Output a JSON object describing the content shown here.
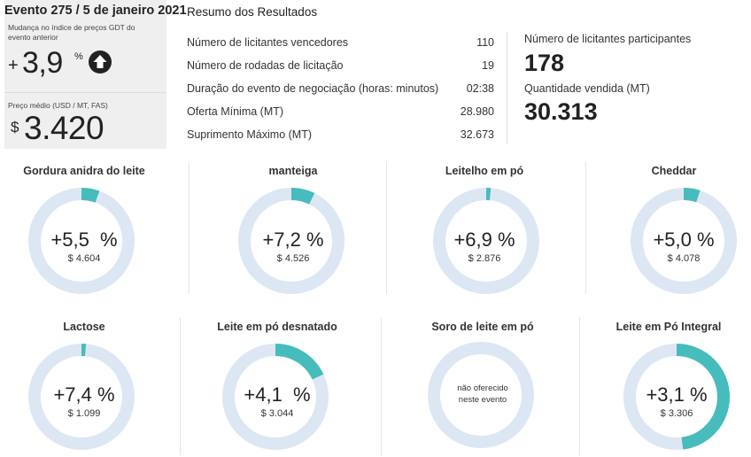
{
  "event": {
    "title": "Evento 275 / 5 de janeiro 2021",
    "gdt_change_label": "Mudança no índice de preços GDT do evento anterior",
    "gdt_change_sign": "+",
    "gdt_change_value": "3,9",
    "gdt_change_unit": "%",
    "gdt_change_icon": "up-arrow-icon",
    "avg_price_label": "Preço médio (USD / MT, FAS)",
    "avg_price_currency": "$",
    "avg_price_value": "3.420"
  },
  "results": {
    "title": "Resumo dos Resultados",
    "rows": [
      {
        "label": "Número de licitantes vencedores",
        "value": "110"
      },
      {
        "label": "Número de rodadas de licitação",
        "value": "19"
      },
      {
        "label": "Duração do evento de negociação (horas: minutos)",
        "value": "02:38"
      },
      {
        "label": "Oferta Mínima (MT)",
        "value": "28.980"
      },
      {
        "label": "Suprimento Máximo (MT)",
        "value": "32.673"
      }
    ],
    "participants_label": "Número de licitantes participantes",
    "participants_value": "178",
    "quantity_sold_label": "Quantidade vendida (MT)",
    "quantity_sold_value": "30.313"
  },
  "colors": {
    "ring_fill": "#46bcbc",
    "ring_track": "#dde7f3",
    "panel_bg": "#efefef",
    "up_icon": "#222222"
  },
  "products": [
    {
      "name": "Gordura anidra do leite",
      "change": "+5,5  %",
      "price": "$ 4.604",
      "ring_fraction": 0.055
    },
    {
      "name": "manteiga",
      "change": "+7,2 %",
      "price": "$ 4.526",
      "ring_fraction": 0.072
    },
    {
      "name": "Leitelho em pó",
      "change": "+6,9 %",
      "price": "$ 2.876",
      "ring_fraction": 0.014
    },
    {
      "name": "Cheddar",
      "change": "+5,0 %",
      "price": "$ 4.078",
      "ring_fraction": 0.05
    },
    {
      "name": "Lactose",
      "change": "+7,4 %",
      "price": "$ 1.099",
      "ring_fraction": 0.014
    },
    {
      "name": "Leite em pó desnatado",
      "change": "+4,1  %",
      "price": "$ 3.044",
      "ring_fraction": 0.18
    },
    {
      "name": "Soro de leite em pó",
      "not_offered": "não oferecido\nneste evento",
      "ring_fraction": 0
    },
    {
      "name": "Leite em Pó Integral",
      "change": "+3,1 %",
      "price": "$ 3.306",
      "ring_fraction": 0.48
    }
  ]
}
